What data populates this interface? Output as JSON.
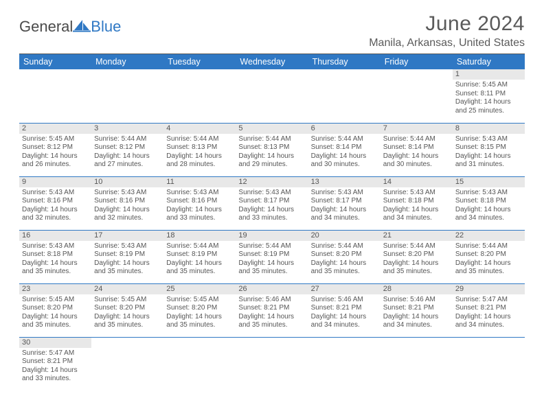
{
  "logo": {
    "part1": "General",
    "part2": "Blue"
  },
  "title": "June 2024",
  "location": "Manila, Arkansas, United States",
  "colors": {
    "accent": "#2f78c4",
    "text": "#555555",
    "daynum_bg": "#e8e8e8",
    "background": "#ffffff"
  },
  "weekdays": [
    "Sunday",
    "Monday",
    "Tuesday",
    "Wednesday",
    "Thursday",
    "Friday",
    "Saturday"
  ],
  "weeks": [
    [
      null,
      null,
      null,
      null,
      null,
      null,
      {
        "n": "1",
        "sr": "5:45 AM",
        "ss": "8:11 PM",
        "dl": "14 hours and 25 minutes."
      }
    ],
    [
      {
        "n": "2",
        "sr": "5:45 AM",
        "ss": "8:12 PM",
        "dl": "14 hours and 26 minutes."
      },
      {
        "n": "3",
        "sr": "5:44 AM",
        "ss": "8:12 PM",
        "dl": "14 hours and 27 minutes."
      },
      {
        "n": "4",
        "sr": "5:44 AM",
        "ss": "8:13 PM",
        "dl": "14 hours and 28 minutes."
      },
      {
        "n": "5",
        "sr": "5:44 AM",
        "ss": "8:13 PM",
        "dl": "14 hours and 29 minutes."
      },
      {
        "n": "6",
        "sr": "5:44 AM",
        "ss": "8:14 PM",
        "dl": "14 hours and 30 minutes."
      },
      {
        "n": "7",
        "sr": "5:44 AM",
        "ss": "8:14 PM",
        "dl": "14 hours and 30 minutes."
      },
      {
        "n": "8",
        "sr": "5:43 AM",
        "ss": "8:15 PM",
        "dl": "14 hours and 31 minutes."
      }
    ],
    [
      {
        "n": "9",
        "sr": "5:43 AM",
        "ss": "8:16 PM",
        "dl": "14 hours and 32 minutes."
      },
      {
        "n": "10",
        "sr": "5:43 AM",
        "ss": "8:16 PM",
        "dl": "14 hours and 32 minutes."
      },
      {
        "n": "11",
        "sr": "5:43 AM",
        "ss": "8:16 PM",
        "dl": "14 hours and 33 minutes."
      },
      {
        "n": "12",
        "sr": "5:43 AM",
        "ss": "8:17 PM",
        "dl": "14 hours and 33 minutes."
      },
      {
        "n": "13",
        "sr": "5:43 AM",
        "ss": "8:17 PM",
        "dl": "14 hours and 34 minutes."
      },
      {
        "n": "14",
        "sr": "5:43 AM",
        "ss": "8:18 PM",
        "dl": "14 hours and 34 minutes."
      },
      {
        "n": "15",
        "sr": "5:43 AM",
        "ss": "8:18 PM",
        "dl": "14 hours and 34 minutes."
      }
    ],
    [
      {
        "n": "16",
        "sr": "5:43 AM",
        "ss": "8:18 PM",
        "dl": "14 hours and 35 minutes."
      },
      {
        "n": "17",
        "sr": "5:43 AM",
        "ss": "8:19 PM",
        "dl": "14 hours and 35 minutes."
      },
      {
        "n": "18",
        "sr": "5:44 AM",
        "ss": "8:19 PM",
        "dl": "14 hours and 35 minutes."
      },
      {
        "n": "19",
        "sr": "5:44 AM",
        "ss": "8:19 PM",
        "dl": "14 hours and 35 minutes."
      },
      {
        "n": "20",
        "sr": "5:44 AM",
        "ss": "8:20 PM",
        "dl": "14 hours and 35 minutes."
      },
      {
        "n": "21",
        "sr": "5:44 AM",
        "ss": "8:20 PM",
        "dl": "14 hours and 35 minutes."
      },
      {
        "n": "22",
        "sr": "5:44 AM",
        "ss": "8:20 PM",
        "dl": "14 hours and 35 minutes."
      }
    ],
    [
      {
        "n": "23",
        "sr": "5:45 AM",
        "ss": "8:20 PM",
        "dl": "14 hours and 35 minutes."
      },
      {
        "n": "24",
        "sr": "5:45 AM",
        "ss": "8:20 PM",
        "dl": "14 hours and 35 minutes."
      },
      {
        "n": "25",
        "sr": "5:45 AM",
        "ss": "8:20 PM",
        "dl": "14 hours and 35 minutes."
      },
      {
        "n": "26",
        "sr": "5:46 AM",
        "ss": "8:21 PM",
        "dl": "14 hours and 35 minutes."
      },
      {
        "n": "27",
        "sr": "5:46 AM",
        "ss": "8:21 PM",
        "dl": "14 hours and 34 minutes."
      },
      {
        "n": "28",
        "sr": "5:46 AM",
        "ss": "8:21 PM",
        "dl": "14 hours and 34 minutes."
      },
      {
        "n": "29",
        "sr": "5:47 AM",
        "ss": "8:21 PM",
        "dl": "14 hours and 34 minutes."
      }
    ],
    [
      {
        "n": "30",
        "sr": "5:47 AM",
        "ss": "8:21 PM",
        "dl": "14 hours and 33 minutes."
      },
      null,
      null,
      null,
      null,
      null,
      null
    ]
  ],
  "labels": {
    "sunrise": "Sunrise:",
    "sunset": "Sunset:",
    "daylight": "Daylight:"
  }
}
